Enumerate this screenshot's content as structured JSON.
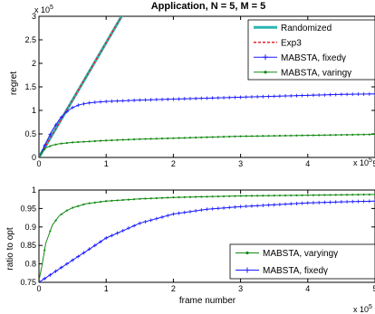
{
  "colors": {
    "randomized": "#2bb5b5",
    "exp3": "#e8222a",
    "fixed": "#1a1aff",
    "varying": "#148a14"
  },
  "chart_data": [
    {
      "type": "line",
      "title": "Application, N = 5, M = 5",
      "xlabel": "",
      "ylabel": "regret",
      "x_exponent_label": "x 10",
      "x_exponent": "5",
      "y_exponent_label": "x 10",
      "y_exponent": "5",
      "xlim": [
        0,
        5
      ],
      "ylim": [
        0,
        3
      ],
      "xticks": [
        "0",
        "1",
        "2",
        "3",
        "4",
        "5"
      ],
      "yticks": [
        "0",
        "0.5",
        "1",
        "1.5",
        "2",
        "2.5",
        "3"
      ],
      "legend_position": "top-right",
      "series": [
        {
          "name": "Randomized",
          "x": [
            0,
            1.25
          ],
          "y": [
            0,
            3.05
          ]
        },
        {
          "name": "Exp3",
          "x": [
            0,
            1.25
          ],
          "y": [
            0,
            3.05
          ]
        },
        {
          "name": "MABSTA, fixedγ",
          "x": [
            0,
            0.1,
            0.2,
            0.3,
            0.4,
            0.5,
            0.6,
            0.7,
            0.8,
            1.0,
            1.5,
            2.0,
            2.5,
            3.0,
            3.5,
            4.0,
            4.5,
            5.0
          ],
          "y": [
            0,
            0.3,
            0.58,
            0.8,
            0.96,
            1.06,
            1.12,
            1.15,
            1.17,
            1.19,
            1.22,
            1.24,
            1.26,
            1.28,
            1.3,
            1.32,
            1.34,
            1.35
          ]
        },
        {
          "name": "MABSTA, varingγ",
          "x": [
            0,
            0.05,
            0.1,
            0.2,
            0.3,
            0.5,
            1.0,
            1.5,
            2.0,
            2.5,
            3.0,
            3.5,
            4.0,
            4.5,
            5.0
          ],
          "y": [
            0,
            0.12,
            0.2,
            0.26,
            0.29,
            0.32,
            0.36,
            0.39,
            0.41,
            0.43,
            0.45,
            0.46,
            0.47,
            0.48,
            0.49
          ]
        }
      ]
    },
    {
      "type": "line",
      "title": "",
      "xlabel": "frame number",
      "ylabel": "ratio to opt",
      "x_exponent_label": "x 10",
      "x_exponent": "5",
      "xlim": [
        0,
        5
      ],
      "ylim": [
        0.75,
        1
      ],
      "xticks": [
        "0",
        "1",
        "2",
        "3",
        "4",
        "5"
      ],
      "yticks": [
        "0.75",
        "0.8",
        "0.85",
        "0.9",
        "0.95",
        "1"
      ],
      "legend_position": "bottom-right",
      "series": [
        {
          "name": "MABSTA, varyingγ",
          "x": [
            0,
            0.05,
            0.1,
            0.2,
            0.3,
            0.4,
            0.5,
            0.7,
            1.0,
            1.5,
            2.0,
            2.5,
            3.0,
            3.5,
            4.0,
            4.5,
            5.0
          ],
          "y": [
            0.755,
            0.8,
            0.855,
            0.905,
            0.93,
            0.943,
            0.952,
            0.963,
            0.97,
            0.976,
            0.98,
            0.982,
            0.984,
            0.985,
            0.986,
            0.987,
            0.988
          ]
        },
        {
          "name": "MABSTA, fixedγ",
          "x": [
            0,
            0.25,
            0.5,
            0.75,
            1.0,
            1.25,
            1.5,
            2.0,
            2.5,
            3.0,
            3.5,
            4.0,
            4.5,
            5.0
          ],
          "y": [
            0.75,
            0.78,
            0.81,
            0.84,
            0.87,
            0.89,
            0.91,
            0.935,
            0.948,
            0.955,
            0.96,
            0.965,
            0.968,
            0.97
          ]
        }
      ]
    }
  ]
}
